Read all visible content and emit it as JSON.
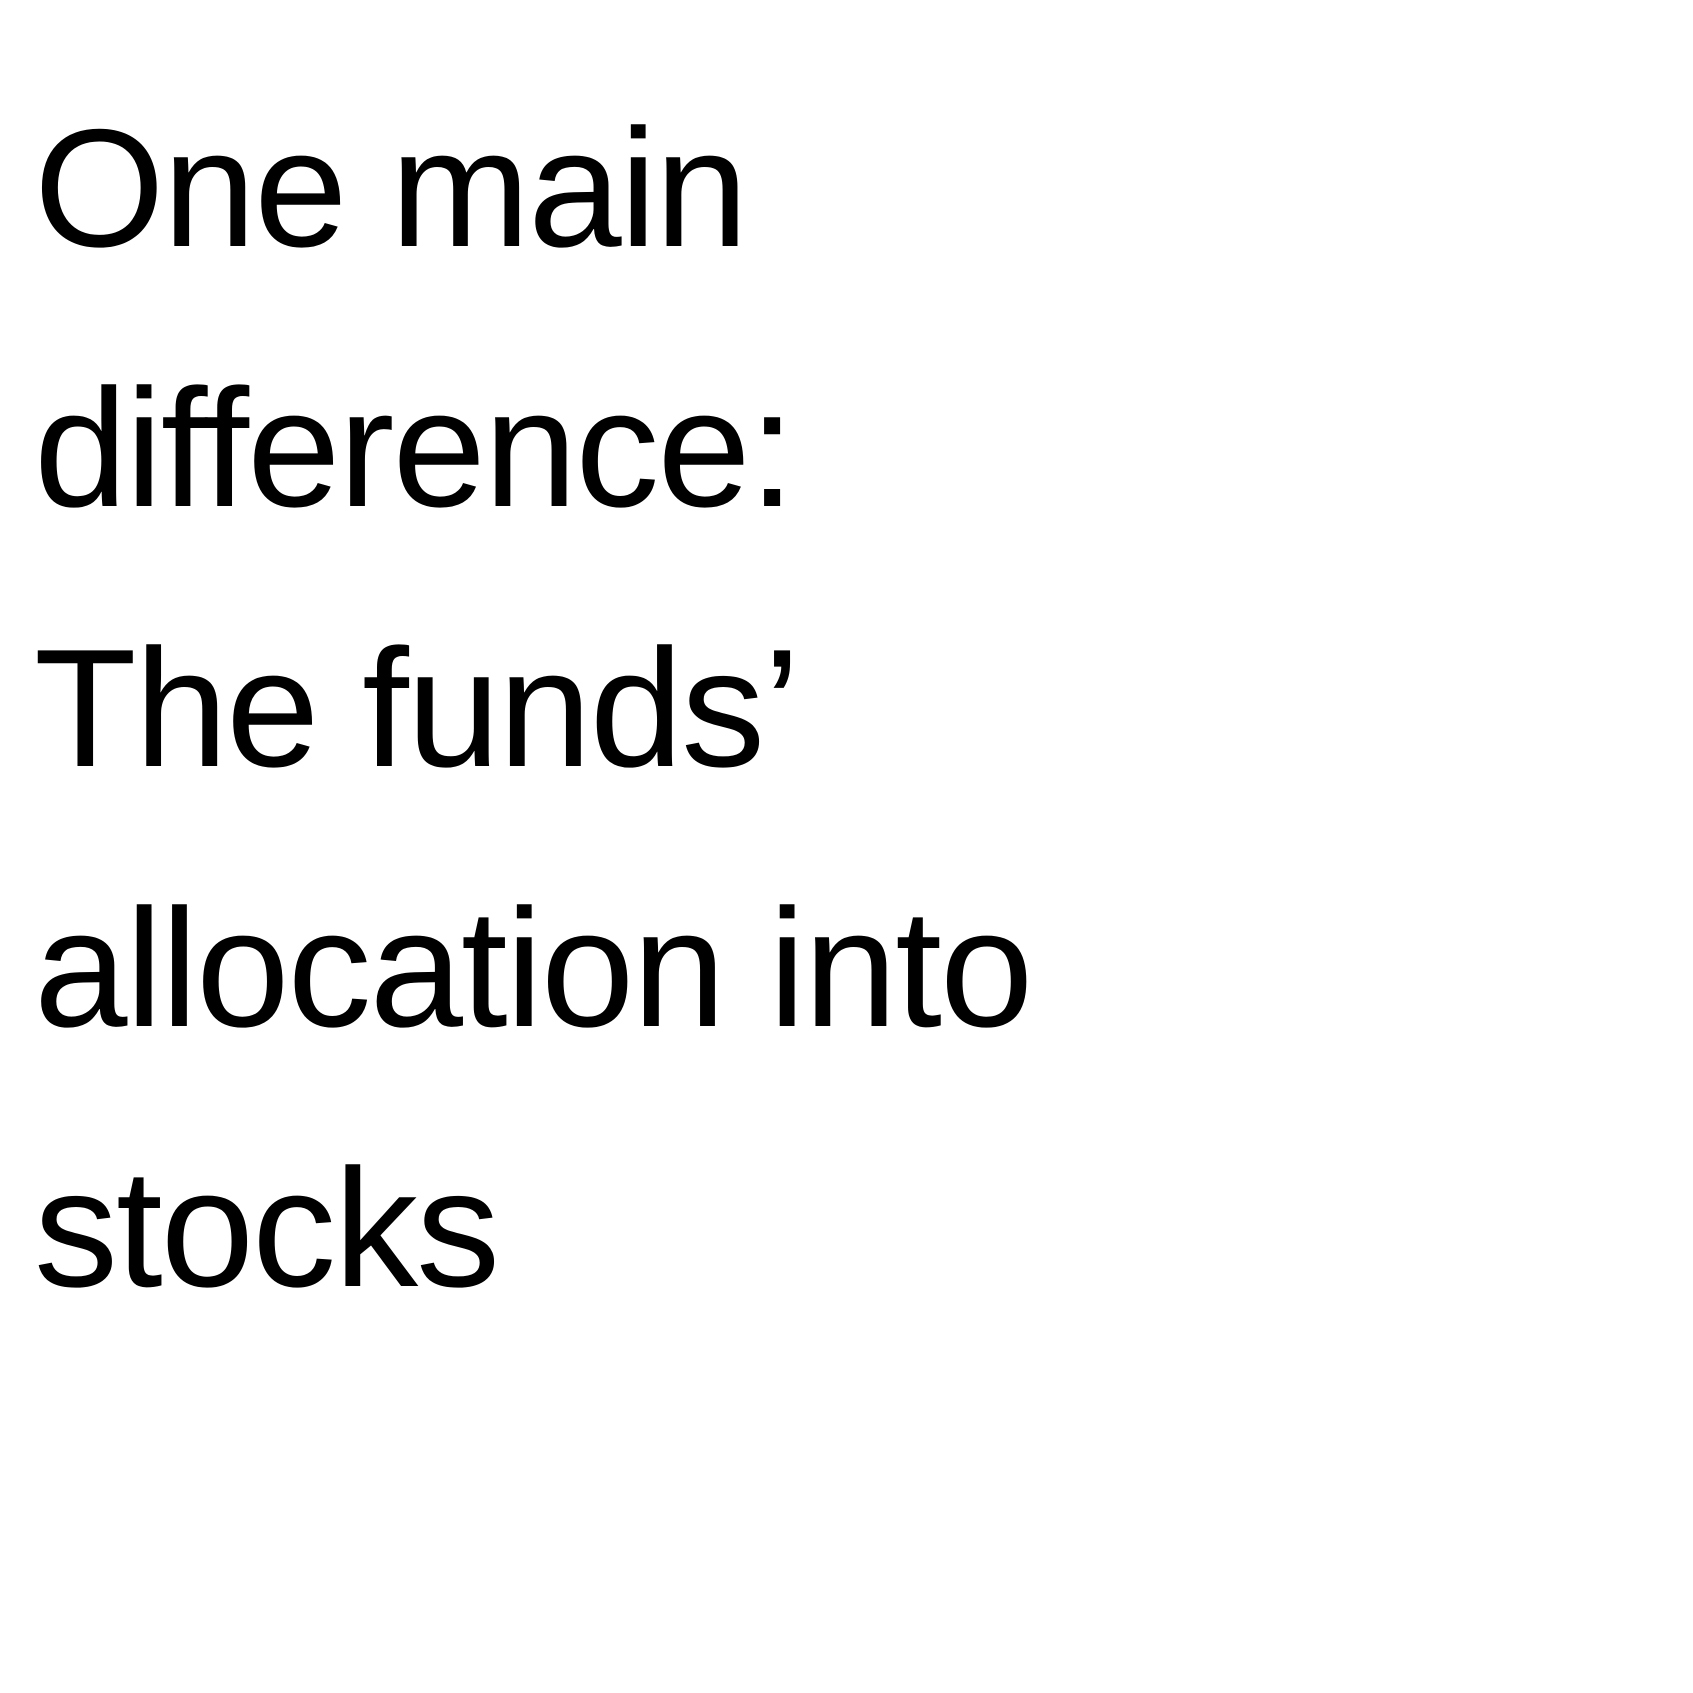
{
  "slide": {
    "lines": [
      "One main",
      "difference:",
      "The funds’",
      "allocation into",
      "stocks"
    ]
  }
}
